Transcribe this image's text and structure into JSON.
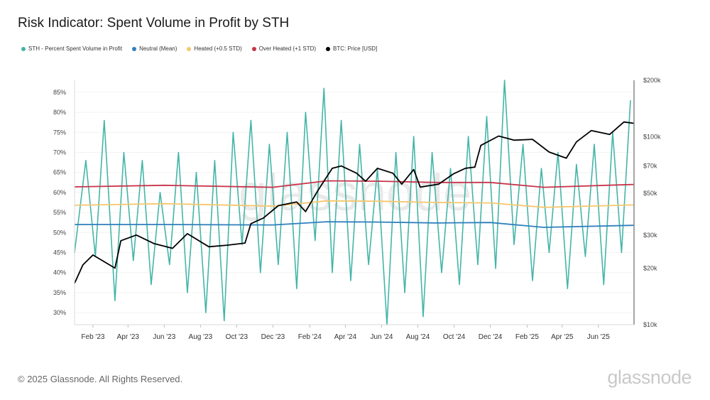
{
  "title": "Risk Indicator: Spent Volume in Profit by STH",
  "footer": "© 2025 Glassnode. All Rights Reserved.",
  "brand": "glassnode",
  "watermark": "glassnode",
  "legend": [
    {
      "label": "STH - Percent Spent Volume in Profit",
      "color": "#45b5a8"
    },
    {
      "label": "Neutral (Mean)",
      "color": "#2f7fbd"
    },
    {
      "label": "Heated (+0.5 STD)",
      "color": "#f5c76f"
    },
    {
      "label": "Over Heated (+1 STD)",
      "color": "#c7344a"
    },
    {
      "label": "BTC: Price [USD]",
      "color": "#000000"
    }
  ],
  "chart_data": {
    "type": "line",
    "x_start": "2023-01-01",
    "x_end": "2025-07-31",
    "x_ticks": [
      "Feb '23",
      "Apr '23",
      "Jun '23",
      "Aug '23",
      "Oct '23",
      "Dec '23",
      "Feb '24",
      "Apr '24",
      "Jun '24",
      "Aug '24",
      "Oct '24",
      "Dec '24",
      "Feb '25",
      "Apr '25",
      "Jun '25"
    ],
    "x_tick_dates": [
      "2023-02-01",
      "2023-04-01",
      "2023-06-01",
      "2023-08-01",
      "2023-10-01",
      "2023-12-01",
      "2024-02-01",
      "2024-04-01",
      "2024-06-01",
      "2024-08-01",
      "2024-10-01",
      "2024-12-01",
      "2025-02-01",
      "2025-04-01",
      "2025-06-01"
    ],
    "y_left": {
      "ticks": [
        "85%",
        "80%",
        "75%",
        "70%",
        "65%",
        "60%",
        "55%",
        "50%",
        "45%",
        "40%",
        "35%",
        "30%"
      ],
      "range": [
        27,
        88
      ]
    },
    "y_right": {
      "scale": "log",
      "ticks": [
        "$200k",
        "$100k",
        "$70k",
        "$50k",
        "$30k",
        "$20k",
        "$10k"
      ],
      "tick_values": [
        200000,
        100000,
        70000,
        50000,
        30000,
        20000,
        10000
      ],
      "range": [
        10000,
        200000
      ]
    },
    "series": [
      {
        "name": "STH - Percent Spent Volume in Profit",
        "color": "#45b5a8",
        "x": [
          "2023-01-01",
          "2023-01-20",
          "2023-02-05",
          "2023-02-20",
          "2023-03-10",
          "2023-03-25",
          "2023-04-10",
          "2023-04-25",
          "2023-05-10",
          "2023-05-25",
          "2023-06-10",
          "2023-06-25",
          "2023-07-10",
          "2023-07-25",
          "2023-08-10",
          "2023-08-25",
          "2023-09-10",
          "2023-09-25",
          "2023-10-10",
          "2023-10-25",
          "2023-11-10",
          "2023-11-25",
          "2023-12-10",
          "2023-12-25",
          "2024-01-10",
          "2024-01-25",
          "2024-02-10",
          "2024-02-25",
          "2024-03-10",
          "2024-03-25",
          "2024-04-10",
          "2024-04-25",
          "2024-05-10",
          "2024-05-25",
          "2024-06-10",
          "2024-06-25",
          "2024-07-10",
          "2024-07-25",
          "2024-08-10",
          "2024-08-25",
          "2024-09-10",
          "2024-09-25",
          "2024-10-10",
          "2024-10-25",
          "2024-11-10",
          "2024-11-25",
          "2024-12-10",
          "2024-12-25",
          "2025-01-10",
          "2025-01-25",
          "2025-02-10",
          "2025-02-25",
          "2025-03-10",
          "2025-03-25",
          "2025-04-10",
          "2025-04-25",
          "2025-05-10",
          "2025-05-25",
          "2025-06-10",
          "2025-06-25",
          "2025-07-10",
          "2025-07-25"
        ],
        "values": [
          45,
          68,
          44,
          78,
          33,
          70,
          43,
          68,
          37,
          60,
          42,
          70,
          35,
          65,
          30,
          68,
          28,
          75,
          47,
          78,
          40,
          72,
          42,
          75,
          36,
          80,
          48,
          86,
          40,
          78,
          38,
          72,
          42,
          66,
          27,
          70,
          35,
          74,
          29,
          70,
          40,
          66,
          37,
          74,
          42,
          79,
          41,
          88,
          47,
          72,
          38,
          66,
          45,
          70,
          36,
          67,
          44,
          72,
          37,
          75,
          45,
          83
        ]
      },
      {
        "name": "Neutral (Mean)",
        "color": "#2f7fbd",
        "x": [
          "2023-01-01",
          "2023-06-01",
          "2023-12-01",
          "2024-03-01",
          "2024-06-01",
          "2024-09-01",
          "2024-12-01",
          "2025-03-01",
          "2025-07-31"
        ],
        "values": [
          52.0,
          52.0,
          51.9,
          52.7,
          52.6,
          52.4,
          52.5,
          51.3,
          51.8
        ]
      },
      {
        "name": "Heated (+0.5 STD)",
        "color": "#f5c76f",
        "x": [
          "2023-01-01",
          "2023-06-01",
          "2023-12-01",
          "2024-03-01",
          "2024-06-01",
          "2024-09-01",
          "2024-12-01",
          "2025-03-01",
          "2025-07-31"
        ],
        "values": [
          56.8,
          57.2,
          56.6,
          57.9,
          57.8,
          57.5,
          57.4,
          56.3,
          56.9
        ]
      },
      {
        "name": "Over Heated (+1 STD)",
        "color": "#c7344a",
        "x": [
          "2023-01-01",
          "2023-06-01",
          "2023-12-01",
          "2024-03-01",
          "2024-06-01",
          "2024-09-01",
          "2024-12-01",
          "2025-03-01",
          "2025-07-31"
        ],
        "values": [
          61.4,
          61.8,
          61.3,
          62.9,
          62.8,
          62.5,
          62.5,
          61.3,
          62.0
        ]
      },
      {
        "name": "BTC: Price [USD]",
        "color": "#000000",
        "axis": "right",
        "x": [
          "2023-01-01",
          "2023-01-15",
          "2023-02-01",
          "2023-03-10",
          "2023-03-20",
          "2023-04-15",
          "2023-05-15",
          "2023-06-15",
          "2023-07-10",
          "2023-08-15",
          "2023-09-15",
          "2023-10-15",
          "2023-10-25",
          "2023-11-15",
          "2023-12-10",
          "2024-01-10",
          "2024-01-25",
          "2024-02-15",
          "2024-03-10",
          "2024-03-25",
          "2024-04-20",
          "2024-05-05",
          "2024-05-25",
          "2024-06-20",
          "2024-07-05",
          "2024-07-25",
          "2024-08-05",
          "2024-09-05",
          "2024-09-30",
          "2024-10-20",
          "2024-11-05",
          "2024-11-15",
          "2024-12-15",
          "2025-01-10",
          "2025-02-10",
          "2025-03-10",
          "2025-04-08",
          "2025-04-25",
          "2025-05-20",
          "2025-06-20",
          "2025-07-14",
          "2025-07-31"
        ],
        "values": [
          16600,
          20800,
          23500,
          20000,
          28000,
          30000,
          27000,
          25500,
          30500,
          26000,
          26500,
          27200,
          34500,
          37000,
          43000,
          45000,
          40000,
          52000,
          68000,
          70000,
          64000,
          58000,
          68000,
          64000,
          56000,
          67000,
          54000,
          56000,
          63500,
          68000,
          69000,
          90000,
          101000,
          96000,
          97000,
          83000,
          77000,
          94000,
          108000,
          103000,
          120000,
          118000
        ]
      }
    ]
  }
}
